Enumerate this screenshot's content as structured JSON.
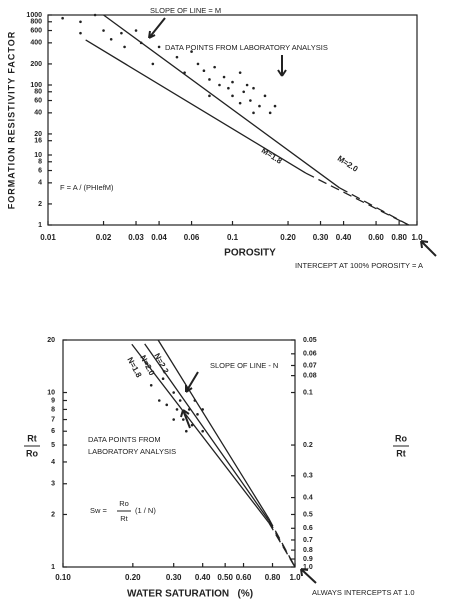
{
  "chart_data": [
    {
      "type": "scatter",
      "xscale": "log",
      "yscale": "log",
      "xlabel": "POROSITY",
      "ylabel": "FORMATION RESISTIVITY FACTOR",
      "xlim": [
        0.01,
        1
      ],
      "ylim": [
        1,
        1000
      ],
      "xticks": [
        0.01,
        0.02,
        0.03,
        0.04,
        0.06,
        0.1,
        {
          "value": 0.2,
          "label": "0.20"
        },
        {
          "value": 0.3,
          "label": "0.30"
        },
        {
          "value": 0.4,
          "label": "0.40"
        },
        {
          "value": 0.6,
          "label": "0.60"
        },
        {
          "value": 0.8,
          "label": "0.80"
        },
        {
          "value": 1,
          "label": "1.0"
        }
      ],
      "yticks": [
        1,
        2,
        4,
        6,
        8,
        10,
        16,
        20,
        40,
        60,
        80,
        100,
        200,
        400,
        600,
        800,
        1000
      ],
      "annotations": [
        "SLOPE OF LINE = M",
        "DATA POINTS FROM LABORATORY ANALYSIS",
        "F = A / (PHIefM)",
        "INTERCEPT AT 100% POROSITY = A"
      ],
      "points": {
        "color": "#222222",
        "x": [
          0.012,
          0.015,
          0.015,
          0.018,
          0.02,
          0.022,
          0.025,
          0.026,
          0.03,
          0.032,
          0.037,
          0.04,
          0.05,
          0.055,
          0.06,
          0.065,
          0.07,
          0.075,
          0.075,
          0.08,
          0.085,
          0.09,
          0.095,
          0.1,
          0.1,
          0.11,
          0.115,
          0.12,
          0.125,
          0.13,
          0.14,
          0.15,
          0.16,
          0.17,
          0.13,
          0.11
        ],
        "y": [
          900,
          800,
          550,
          1000,
          600,
          450,
          550,
          350,
          600,
          400,
          200,
          350,
          250,
          150,
          300,
          200,
          160,
          120,
          70,
          180,
          100,
          130,
          90,
          110,
          70,
          150,
          80,
          100,
          60,
          90,
          50,
          70,
          40,
          50,
          40,
          55
        ]
      },
      "lines": [
        {
          "name": "M=1.8",
          "color": "#222222",
          "x": [
            0.016,
            0.25,
            0.9
          ],
          "y": [
            440,
            5.5,
            1
          ],
          "segment_styles": [
            "solid",
            "dashed"
          ]
        },
        {
          "name": "M=2.0",
          "color": "#222222",
          "x": [
            0.02,
            0.38,
            0.9
          ],
          "y": [
            1000,
            3.4,
            1
          ],
          "segment_styles": [
            "solid",
            "dashed"
          ]
        }
      ]
    },
    {
      "type": "scatter",
      "xscale": "log",
      "yscale": "log",
      "xlabel": "WATER SATURATION   (%)",
      "ylabel": [
        "Rt",
        "Ro"
      ],
      "y2label": [
        "Ro",
        "Rt"
      ],
      "xlim": [
        0.1,
        1
      ],
      "ylim": [
        1,
        20
      ],
      "y2lim": [
        1,
        0.05
      ],
      "xticks": [
        {
          "value": 0.1,
          "label": "0.10"
        },
        {
          "value": 0.2,
          "label": "0.20"
        },
        {
          "value": 0.3,
          "label": "0.30"
        },
        {
          "value": 0.4,
          "label": "0.40"
        },
        {
          "value": 0.5,
          "label": "0.50"
        },
        {
          "value": 0.6,
          "label": "0.60"
        },
        {
          "value": 0.8,
          "label": "0.80"
        },
        {
          "value": 1,
          "label": "1.0"
        }
      ],
      "yticks": [
        1,
        2,
        3,
        4,
        5,
        6,
        7,
        8,
        9,
        10,
        20
      ],
      "y2ticks": [
        0.05,
        0.06,
        0.07,
        0.08,
        0.1,
        0.2,
        0.3,
        0.4,
        0.5,
        0.6,
        0.7,
        0.8,
        0.9,
        {
          "value": 1,
          "label": "1.0"
        }
      ],
      "annotations": [
        "SLOPE OF LINE - N",
        "DATA POINTS FROM",
        "LABORATORY ANALYSIS",
        "Sw =",
        "Ro",
        "Rt",
        "(1 / N)",
        "ALWAYS INTERCEPTS AT 1.0"
      ],
      "points": {
        "color": "#222222",
        "x": [
          0.24,
          0.26,
          0.27,
          0.28,
          0.3,
          0.31,
          0.32,
          0.33,
          0.34,
          0.35,
          0.36,
          0.37,
          0.38,
          0.4,
          0.4,
          0.34,
          0.3
        ],
        "y": [
          11,
          9,
          12,
          8.5,
          10,
          8,
          9,
          7,
          10.5,
          8,
          6.5,
          9,
          7.5,
          8,
          6,
          6,
          7
        ]
      },
      "lines": [
        {
          "name": "N=1.8",
          "color": "#222222",
          "x": [
            0.198,
            0.77,
            1
          ],
          "y": [
            18.9,
            1.8,
            1
          ],
          "segment_styles": [
            "solid",
            "dashed"
          ]
        },
        {
          "name": "N=2.0",
          "color": "#222222",
          "x": [
            0.225,
            0.77,
            1
          ],
          "y": [
            19,
            1.85,
            1
          ],
          "segment_styles": [
            "solid",
            "dashed"
          ]
        },
        {
          "name": "N=2.2",
          "color": "#222222",
          "x": [
            0.257,
            0.77,
            1
          ],
          "y": [
            20,
            1.9,
            1
          ],
          "segment_styles": [
            "solid",
            "dashed"
          ]
        }
      ]
    }
  ]
}
